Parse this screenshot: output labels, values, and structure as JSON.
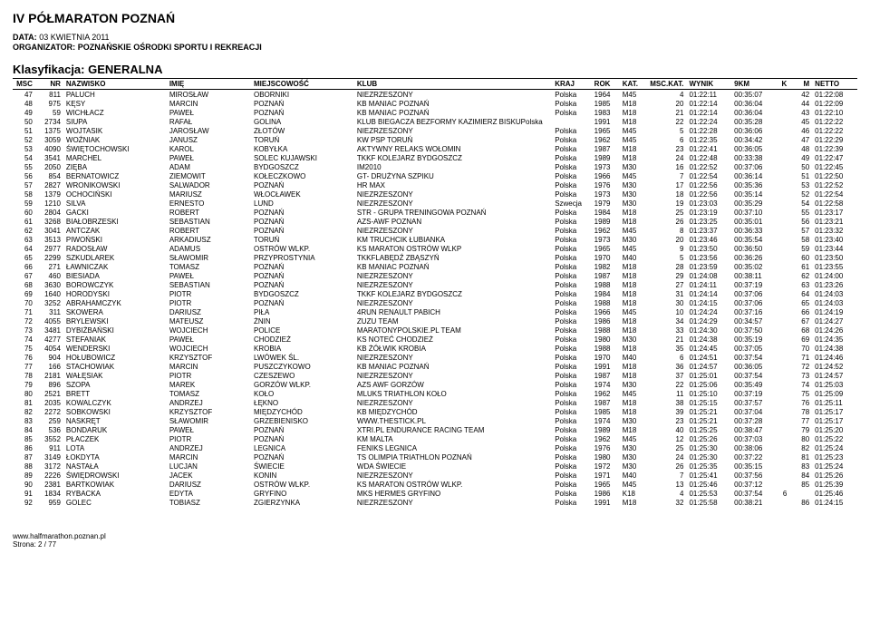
{
  "header": {
    "title": "IV PÓŁMARATON POZNAŃ",
    "date_label": "DATA:",
    "date_value": "03 KWIETNIA 2011",
    "org_label": "ORGANIZATOR:",
    "org_value": "POZNAŃSKIE OŚRODKI SPORTU I REKREACJI",
    "klas_label": "Klasyfikacja:",
    "klas_value": "GENERALNA"
  },
  "columns": [
    "MSC",
    "NR",
    "NAZWISKO",
    "IMIĘ",
    "MIEJSCOWOŚĆ",
    "KLUB",
    "KRAJ",
    "ROK",
    "KAT.",
    "MSC.KAT.",
    "WYNIK",
    "9KM",
    "K",
    "M",
    "NETTO"
  ],
  "col_widths": [
    "24px",
    "30px",
    "110px",
    "90px",
    "110px",
    "200px",
    "42px",
    "30px",
    "28px",
    "20px",
    "48px",
    "48px",
    "14px",
    "24px",
    "48px"
  ],
  "col_align": [
    "r",
    "r",
    "l",
    "l",
    "l",
    "l",
    "l",
    "l",
    "l",
    "r",
    "l",
    "l",
    "r",
    "r",
    "l"
  ],
  "rows": [
    [
      47,
      811,
      "PALUCH",
      "MIROSŁAW",
      "OBORNIKI",
      "NIEZRZESZONY",
      "Polska",
      1964,
      "M45",
      4,
      "01:22:11",
      "00:35:07",
      "",
      42,
      "01:22:08"
    ],
    [
      48,
      975,
      "KĘSY",
      "MARCIN",
      "POZNAŃ",
      "KB MANIAC POZNAŃ",
      "Polska",
      1985,
      "M18",
      20,
      "01:22:14",
      "00:36:04",
      "",
      44,
      "01:22:09"
    ],
    [
      49,
      59,
      "WICHŁACZ",
      "PAWEŁ",
      "POZNAŃ",
      "KB MANIAC POZNAŃ",
      "Polska",
      1983,
      "M18",
      21,
      "01:22:14",
      "00:36:04",
      "",
      43,
      "01:22:10"
    ],
    [
      50,
      2734,
      "SIUPA",
      "RAFAŁ",
      "GOLINA",
      "KLUB BIEGACZA BEZFORMY KAZIMIERZ BISKUPolska",
      "",
      1991,
      "M18",
      22,
      "01:22:24",
      "00:35:28",
      "",
      45,
      "01:22:22"
    ],
    [
      51,
      1375,
      "WOJTASIK",
      "JAROSŁAW",
      "ZŁOTÓW",
      "NIEZRZESZONY",
      "Polska",
      1965,
      "M45",
      5,
      "01:22:28",
      "00:36:06",
      "",
      46,
      "01:22:22"
    ],
    [
      52,
      3059,
      "WOŹNIAK",
      "JANUSZ",
      "TORUŃ",
      "KW PSP TORUŃ",
      "Polska",
      1962,
      "M45",
      6,
      "01:22:35",
      "00:34:42",
      "",
      47,
      "01:22:29"
    ],
    [
      53,
      4090,
      "ŚWIĘTOCHOWSKI",
      "KAROL",
      "KOBYŁKA",
      "AKTYWNY RELAKS WOŁOMIN",
      "Polska",
      1987,
      "M18",
      23,
      "01:22:41",
      "00:36:05",
      "",
      48,
      "01:22:39"
    ],
    [
      54,
      3541,
      "MARCHEL",
      "PAWEŁ",
      "SOLEC KUJAWSKI",
      "TKKF KOLEJARZ BYDGOSZCZ",
      "Polska",
      1989,
      "M18",
      24,
      "01:22:48",
      "00:33:38",
      "",
      49,
      "01:22:47"
    ],
    [
      55,
      2050,
      "ZIĘBA",
      "ADAM",
      "BYDGOSZCZ",
      "IM2010",
      "Polska",
      1973,
      "M30",
      16,
      "01:22:52",
      "00:37:06",
      "",
      50,
      "01:22:45"
    ],
    [
      56,
      854,
      "BERNATOWICZ",
      "ZIEMOWIT",
      "KOŁECZKOWO",
      "GT- DRUŻYNA SZPIKU",
      "Polska",
      1966,
      "M45",
      7,
      "01:22:54",
      "00:36:14",
      "",
      51,
      "01:22:50"
    ],
    [
      57,
      2827,
      "WRONIKOWSKI",
      "SALWADOR",
      "POZNAŃ",
      "HR MAX",
      "Polska",
      1976,
      "M30",
      17,
      "01:22:56",
      "00:35:36",
      "",
      53,
      "01:22:52"
    ],
    [
      58,
      1379,
      "OCHOCIŃSKI",
      "MARIUSZ",
      "WŁOCŁAWEK",
      "NIEZRZESZONY",
      "Polska",
      1973,
      "M30",
      18,
      "01:22:56",
      "00:35:14",
      "",
      52,
      "01:22:54"
    ],
    [
      59,
      1210,
      "SILVA",
      "ERNESTO",
      "LUND",
      "NIEZRZESZONY",
      "Szwecja",
      1979,
      "M30",
      19,
      "01:23:03",
      "00:35:29",
      "",
      54,
      "01:22:58"
    ],
    [
      60,
      2804,
      "GACKI",
      "ROBERT",
      "POZNAŃ",
      "STR - GRUPA TRENINGOWA POZNAŃ",
      "Polska",
      1984,
      "M18",
      25,
      "01:23:19",
      "00:37:10",
      "",
      55,
      "01:23:17"
    ],
    [
      61,
      3268,
      "BIAŁOBRZESKI",
      "SEBASTIAN",
      "POZNAŃ",
      "AZS-AWF POZNAN",
      "Polska",
      1989,
      "M18",
      26,
      "01:23:25",
      "00:35:01",
      "",
      56,
      "01:23:21"
    ],
    [
      62,
      3041,
      "ANTCZAK",
      "ROBERT",
      "POZNAŃ",
      "NIEZRZESZONY",
      "Polska",
      1962,
      "M45",
      8,
      "01:23:37",
      "00:36:33",
      "",
      57,
      "01:23:32"
    ],
    [
      63,
      3513,
      "PIWOŃSKI",
      "ARKADIUSZ",
      "TORUŃ",
      "KM TRUCHCIK ŁUBIANKA",
      "Polska",
      1973,
      "M30",
      20,
      "01:23:46",
      "00:35:54",
      "",
      58,
      "01:23:40"
    ],
    [
      64,
      2977,
      "RADOSŁAW",
      "ADAMUS",
      "OSTRÓW WLKP.",
      "KS MARATON OSTRÓW WLKP",
      "Polska",
      1965,
      "M45",
      9,
      "01:23:50",
      "00:36:50",
      "",
      59,
      "01:23:44"
    ],
    [
      65,
      2299,
      "SZKUDLAREK",
      "SŁAWOMIR",
      "PRZYPROSTYNIA",
      "TKKFLABĘDŹ ZBĄSZYŃ",
      "Polska",
      1970,
      "M40",
      5,
      "01:23:56",
      "00:36:26",
      "",
      60,
      "01:23:50"
    ],
    [
      66,
      271,
      "ŁAWNICZAK",
      "TOMASZ",
      "POZNAŃ",
      "KB MANIAC POZNAŃ",
      "Polska",
      1982,
      "M18",
      28,
      "01:23:59",
      "00:35:02",
      "",
      61,
      "01:23:55"
    ],
    [
      67,
      460,
      "BIESIADA",
      "PAWEŁ",
      "POZNAŃ",
      "NIEZRZESZONY",
      "Polska",
      1987,
      "M18",
      29,
      "01:24:08",
      "00:38:11",
      "",
      62,
      "01:24:00"
    ],
    [
      68,
      3630,
      "BOROWCZYK",
      "SEBASTIAN",
      "POZNAŃ",
      "NIEZRZESZONY",
      "Polska",
      1988,
      "M18",
      27,
      "01:24:11",
      "00:37:19",
      "",
      63,
      "01:23:26"
    ],
    [
      69,
      1640,
      "HORODYSKI",
      "PIOTR",
      "BYDGOSZCZ",
      "TKKF KOLEJARZ BYDGOSZCZ",
      "Polska",
      1984,
      "M18",
      31,
      "01:24:14",
      "00:37:06",
      "",
      64,
      "01:24:03"
    ],
    [
      70,
      3252,
      "ABRAHAMCZYK",
      "PIOTR",
      "POZNAŃ",
      "NIEZRZESZONY",
      "Polska",
      1988,
      "M18",
      30,
      "01:24:15",
      "00:37:06",
      "",
      65,
      "01:24:03"
    ],
    [
      71,
      311,
      "SKOWERA",
      "DARIUSZ",
      "PIŁA",
      "4RUN RENAULT PABICH",
      "Polska",
      1966,
      "M45",
      10,
      "01:24:24",
      "00:37:16",
      "",
      66,
      "01:24:19"
    ],
    [
      72,
      4055,
      "BRYLEWSKI",
      "MATEUSZ",
      "ŻNIN",
      "ZUZU TEAM",
      "Polska",
      1986,
      "M18",
      34,
      "01:24:29",
      "00:34:57",
      "",
      67,
      "01:24:27"
    ],
    [
      73,
      3481,
      "DYBIŻBAŃSKI",
      "WOJCIECH",
      "POLICE",
      "MARATONYPOLSKIE.PL TEAM",
      "Polska",
      1988,
      "M18",
      33,
      "01:24:30",
      "00:37:50",
      "",
      68,
      "01:24:26"
    ],
    [
      74,
      4277,
      "STEFANIAK",
      "PAWEŁ",
      "CHODZIEŻ",
      "KS NOTEĆ CHODZIEŻ",
      "Polska",
      1980,
      "M30",
      21,
      "01:24:38",
      "00:35:19",
      "",
      69,
      "01:24:35"
    ],
    [
      75,
      4054,
      "WENDERSKI",
      "WOJCIECH",
      "KROBIA",
      "KB ŻÓŁWIK KROBIA",
      "Polska",
      1988,
      "M18",
      35,
      "01:24:45",
      "00:37:05",
      "",
      70,
      "01:24:38"
    ],
    [
      76,
      904,
      "HOŁUBOWICZ",
      "KRZYSZTOF",
      "LWÓWEK ŚL.",
      "NIEZRZESZONY",
      "Polska",
      1970,
      "M40",
      6,
      "01:24:51",
      "00:37:54",
      "",
      71,
      "01:24:46"
    ],
    [
      77,
      166,
      "STACHOWIAK",
      "MARCIN",
      "PUSZCZYKOWO",
      "KB MANIAC POZNAŃ",
      "Polska",
      1991,
      "M18",
      36,
      "01:24:57",
      "00:36:05",
      "",
      72,
      "01:24:52"
    ],
    [
      78,
      2181,
      "WAŁĘSIAK",
      "PIOTR",
      "CZESZEWO",
      "NIEZRZESZONY",
      "Polska",
      1987,
      "M18",
      37,
      "01:25:01",
      "00:37:54",
      "",
      73,
      "01:24:57"
    ],
    [
      79,
      896,
      "SZOPA",
      "MAREK",
      "GORZÓW WLKP.",
      "AZS AWF GORZÓW",
      "Polska",
      1974,
      "M30",
      22,
      "01:25:06",
      "00:35:49",
      "",
      74,
      "01:25:03"
    ],
    [
      80,
      2521,
      "BRETT",
      "TOMASZ",
      "KOŁO",
      "MLUKS TRIATHLON KOŁO",
      "Polska",
      1962,
      "M45",
      11,
      "01:25:10",
      "00:37:19",
      "",
      75,
      "01:25:09"
    ],
    [
      81,
      2035,
      "KOWALCZYK",
      "ANDRZEJ",
      "ŁĘKNO",
      "NIEZRZESZONY",
      "Polska",
      1987,
      "M18",
      38,
      "01:25:15",
      "00:37:57",
      "",
      76,
      "01:25:11"
    ],
    [
      82,
      2272,
      "SOBKOWSKI",
      "KRZYSZTOF",
      "MIĘDZYCHÓD",
      "KB MIĘDZYCHÓD",
      "Polska",
      1985,
      "M18",
      39,
      "01:25:21",
      "00:37:04",
      "",
      78,
      "01:25:17"
    ],
    [
      83,
      259,
      "NASKRĘT",
      "SŁAWOMIR",
      "GRZEBIENISKO",
      "WWW.THESTICK.PL",
      "Polska",
      1974,
      "M30",
      23,
      "01:25:21",
      "00:37:28",
      "",
      77,
      "01:25:17"
    ],
    [
      84,
      536,
      "BONDARUK",
      "PAWEŁ",
      "POZNAŃ",
      "XTRI.PL ENDURANCE RACING TEAM",
      "Polska",
      1989,
      "M18",
      40,
      "01:25:25",
      "00:38:47",
      "",
      79,
      "01:25:20"
    ],
    [
      85,
      3552,
      "PŁACZEK",
      "PIOTR",
      "POZNAŃ",
      "KM MALTA",
      "Polska",
      1962,
      "M45",
      12,
      "01:25:26",
      "00:37:03",
      "",
      80,
      "01:25:22"
    ],
    [
      86,
      911,
      "LOTA",
      "ANDRZEJ",
      "LEGNICA",
      "FENIKS LEGNICA",
      "Polska",
      1976,
      "M30",
      25,
      "01:25:30",
      "00:38:06",
      "",
      82,
      "01:25:24"
    ],
    [
      87,
      3149,
      "ŁOKDYTA",
      "MARCIN",
      "POZNAŃ",
      "TS OLIMPIA TRIATHLON POZNAŃ",
      "Polska",
      1980,
      "M30",
      24,
      "01:25:30",
      "00:37:22",
      "",
      81,
      "01:25:23"
    ],
    [
      88,
      3172,
      "NASTAŁA",
      "LUCJAN",
      "ŚWIECIE",
      "WDA ŚWIECIE",
      "Polska",
      1972,
      "M30",
      26,
      "01:25:35",
      "00:35:15",
      "",
      83,
      "01:25:24"
    ],
    [
      89,
      2226,
      "ŚWIĘDROWSKI",
      "JACEK",
      "KONIN",
      "NIEZRZESZONY",
      "Polska",
      1971,
      "M40",
      7,
      "01:25:41",
      "00:37:56",
      "",
      84,
      "01:25:26"
    ],
    [
      90,
      2381,
      "BARTKOWIAK",
      "DARIUSZ",
      "OSTRÓW WLKP.",
      "KS MARATON OSTRÓW WLKP.",
      "Polska",
      1965,
      "M45",
      13,
      "01:25:46",
      "00:37:12",
      "",
      85,
      "01:25:39"
    ],
    [
      91,
      1834,
      "RYBACKA",
      "EDYTA",
      "GRYFINO",
      "MKS HERMES GRYFINO",
      "Polska",
      1986,
      "K18",
      4,
      "01:25:53",
      "00:37:54",
      6,
      "",
      "01:25:46"
    ],
    [
      92,
      959,
      "GOLEC",
      "TOBIASZ",
      "ZGIERZYNKA",
      "NIEZRZESZONY",
      "Polska",
      1991,
      "M18",
      32,
      "01:25:58",
      "00:38:21",
      "",
      86,
      "01:24:15"
    ]
  ],
  "footer": {
    "site": "www.halfmarathon.poznan.pl",
    "page": "Strona: 2 / 77"
  }
}
